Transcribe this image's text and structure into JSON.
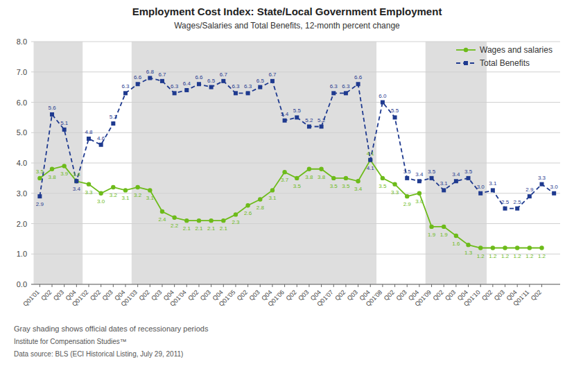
{
  "chart_data": {
    "type": "line",
    "title": "Employment Cost Index: State/Local Government Employment",
    "subtitle": "Wages/Salaries and Total Benefits, 12-month percent change",
    "categories": [
      "Q01'01",
      "Q02",
      "Q03",
      "Q04",
      "Q01'02",
      "Q02",
      "Q03",
      "Q04",
      "Q01'03",
      "Q02",
      "Q03",
      "Q04",
      "Q01'04",
      "Q02",
      "Q03",
      "Q04",
      "Q01'05",
      "Q02",
      "Q03",
      "Q04",
      "Q01'06",
      "Q02",
      "Q03",
      "Q04",
      "Q01'07",
      "Q02",
      "Q03",
      "Q04",
      "Q01'08",
      "Q02",
      "Q03",
      "Q04",
      "Q01'09",
      "Q02",
      "Q03",
      "Q04",
      "Q01'10",
      "Q02",
      "Q03",
      "Q04",
      "Q01'11",
      "Q02",
      null
    ],
    "series": [
      {
        "name": "Wages and salaries",
        "color": "#6DBB1A",
        "marker": "circle",
        "line_style": "solid",
        "values": [
          3.5,
          3.8,
          3.9,
          3.4,
          3.3,
          3.0,
          3.2,
          3.1,
          3.2,
          3.1,
          2.4,
          2.2,
          2.1,
          2.1,
          2.1,
          2.1,
          2.3,
          2.6,
          2.8,
          3.1,
          3.7,
          3.5,
          3.8,
          3.8,
          3.5,
          3.5,
          3.4,
          4.1,
          3.5,
          3.3,
          2.9,
          3.0,
          1.9,
          1.9,
          1.6,
          1.3,
          1.2,
          1.2,
          1.2,
          1.2,
          1.2,
          1.2,
          null
        ],
        "value_labels": [
          "3.5",
          "3.8",
          "3.9",
          "3.4",
          "3.3",
          "3.0",
          "3.2",
          "3.1",
          "3.2",
          "3.1",
          "2.4",
          "2.2",
          "2.1",
          "2.1",
          "2.1",
          "2.1",
          "2.3",
          "2.6",
          "2.8",
          "3.1",
          "3.7",
          "3.5",
          "3.8",
          "3.8",
          "3.5",
          "3.5",
          "3.4",
          "4.1",
          "3.5",
          "3.3",
          "2.9",
          "3.0",
          "1.9",
          "1.9",
          "1.6",
          "1.3",
          "1.2",
          "1.2",
          "1.2",
          "1.2",
          "1.2",
          "1.2",
          null
        ]
      },
      {
        "name": "Total Benefits",
        "color": "#1F3A8F",
        "marker": "square",
        "line_style": "dashed",
        "values": [
          2.9,
          5.6,
          5.1,
          3.4,
          4.8,
          4.6,
          5.3,
          6.3,
          6.6,
          6.8,
          6.7,
          6.3,
          6.4,
          6.6,
          6.5,
          6.7,
          6.3,
          6.3,
          6.5,
          6.7,
          5.4,
          5.5,
          5.2,
          5.2,
          6.3,
          6.3,
          6.6,
          4.1,
          6.0,
          5.5,
          3.5,
          3.4,
          3.5,
          3.1,
          3.4,
          3.5,
          3.0,
          3.1,
          2.5,
          2.5,
          2.9,
          3.3,
          3.0
        ],
        "value_labels": [
          "2.9",
          "5.6",
          "5.1",
          "3.4",
          "4.8",
          "4.6",
          "5.3",
          "6.3",
          "6.6",
          "6.8",
          "6.7",
          "6.3",
          "6.4",
          "6.6",
          "6.5",
          "6.7",
          "6.3",
          "6.3",
          "6.5",
          "6.7",
          "5.4",
          "5.5",
          "5.2",
          "5.2",
          "6.3",
          "6.3",
          "6.6",
          "4.1",
          "6.0",
          "5.5",
          "3.5",
          "3.4",
          "3.5",
          "3.1",
          "3.4",
          "3.5",
          "3.0",
          "3.1",
          "2.5",
          "2.5",
          "2.9",
          "3.3",
          "3.0"
        ]
      }
    ],
    "shading": {
      "color": "#DEDEDE",
      "spans": [
        [
          -0.5,
          3.5
        ],
        [
          7.5,
          27.5
        ],
        [
          31.5,
          36.5
        ]
      ]
    },
    "xlim": [
      -0.7,
      42.5
    ],
    "ylim": [
      0.0,
      8.0
    ],
    "yticks": [
      {
        "value": 0.0,
        "label": "0.0"
      },
      {
        "value": 1.0,
        "label": "1.0"
      },
      {
        "value": 2.0,
        "label": "2.0"
      },
      {
        "value": 3.0,
        "label": "3.0"
      },
      {
        "value": 4.0,
        "label": "4.0"
      },
      {
        "value": 5.0,
        "label": "5.0"
      },
      {
        "value": 6.0,
        "label": "6.0"
      },
      {
        "value": 7.0,
        "label": "7.0"
      },
      {
        "value": 8.0,
        "label": "8.0"
      }
    ],
    "grid": true,
    "legend": "upper right",
    "data_labels": true,
    "footnotes": [
      "Gray shading shows official dates of recessionary periods",
      "Institute for Compensation Studies™",
      "Data source: BLS (ECI Historical Listing, July 29, 2011)"
    ]
  }
}
